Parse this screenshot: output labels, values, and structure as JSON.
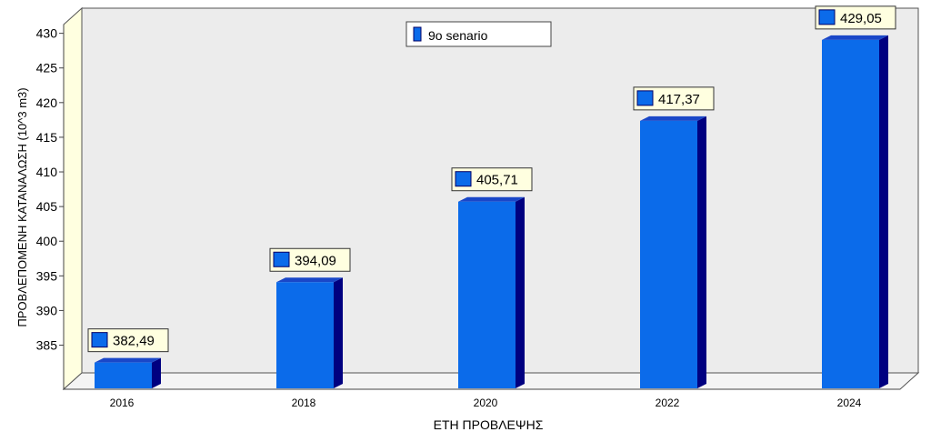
{
  "chart_data": {
    "type": "bar",
    "categories": [
      "2016",
      "2018",
      "2020",
      "2022",
      "2024"
    ],
    "series": [
      {
        "name": "9o senario",
        "values": [
          382.49,
          394.09,
          405.71,
          417.37,
          429.05
        ]
      }
    ],
    "value_labels": [
      "382,49",
      "394,09",
      "405,71",
      "417,37",
      "429,05"
    ],
    "y_ticks": [
      "385",
      "390",
      "395",
      "400",
      "405",
      "410",
      "415",
      "420",
      "425",
      "430"
    ],
    "xlabel": "ΕΤΗ ΠΡΟΒΛΕΨΗΣ",
    "ylabel": "ΠΡΟΒΛΕΠΟΜΕΝΗ ΚΑΤΑΝΑΛΩΣΗ (10^3 m3)",
    "ylim": [
      381,
      431
    ],
    "grid": false,
    "legend_position": "top-center",
    "bar_style": "3d",
    "colors": {
      "bar_front": "#0b6bea",
      "bar_side": "#000080",
      "bar_top": "#1a47c8",
      "plot_background": "#ececec",
      "axis_wall": "#ffffe0",
      "label_box": "#ffffe0"
    }
  }
}
